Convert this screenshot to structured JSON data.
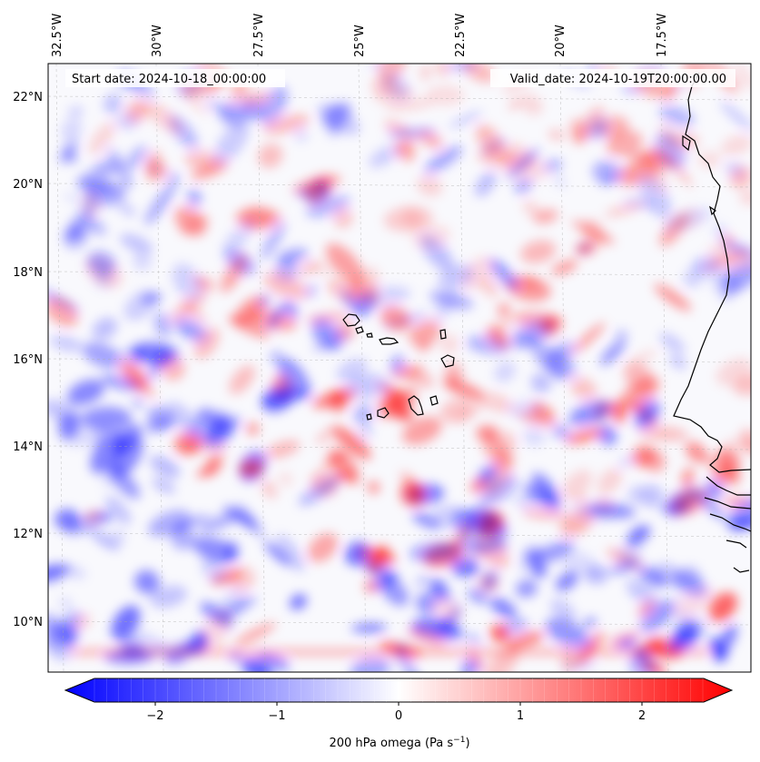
{
  "header": {
    "start_date": "Start date: 2024-10-18_00:00:00",
    "valid_date": "Valid_date: 2024-10-19T20:00:00.00"
  },
  "map": {
    "lon_labels": [
      "32.5°W",
      "30°W",
      "27.5°W",
      "25°W",
      "22.5°W",
      "20°W",
      "17.5°W"
    ],
    "lat_labels": [
      "22°N",
      "20°N",
      "18°N",
      "16°N",
      "14°N",
      "12°N",
      "10°N"
    ],
    "field_colors": {
      "negative": "#0000ff",
      "zero": "#ffffff",
      "positive": "#ff0000"
    }
  },
  "colorbar": {
    "ticks": [
      "−2",
      "−1",
      "0",
      "1",
      "2"
    ],
    "label_main": "200 hPa omega (Pa s",
    "label_sup": "−1",
    "label_end": ")"
  }
}
